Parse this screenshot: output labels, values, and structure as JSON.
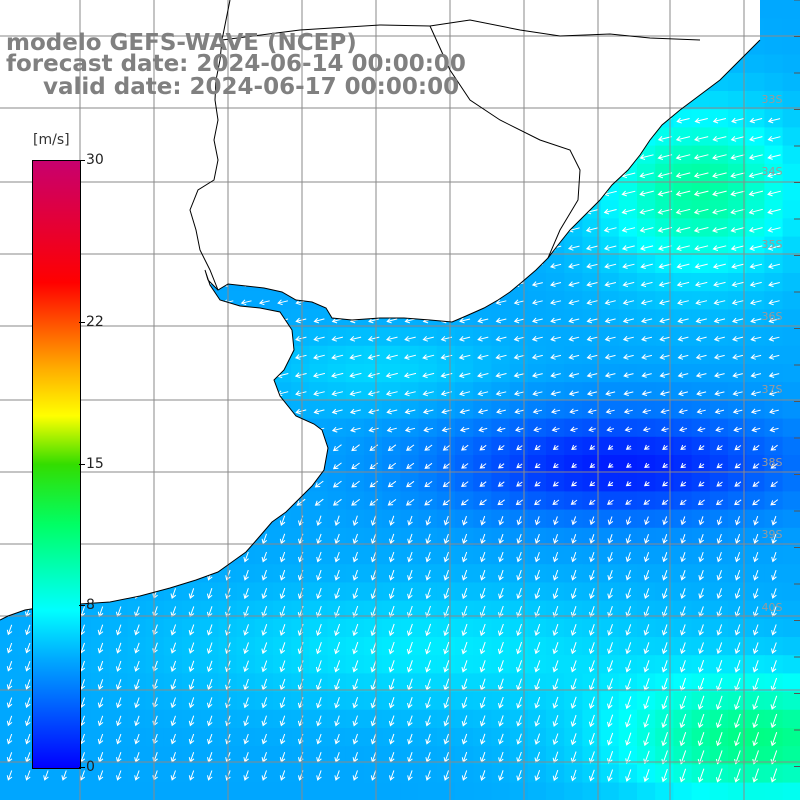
{
  "title": {
    "model": "modelo GEFS-WAVE (NCEP)",
    "forecast": "forecast date: 2024-06-14 00:00:00",
    "valid": "valid date: 2024-06-17 00:00:00"
  },
  "colorbar": {
    "unit": "[m/s]",
    "ticks": [
      {
        "label": "30",
        "value": 30
      },
      {
        "label": "22",
        "value": 22
      },
      {
        "label": "15",
        "value": 15
      },
      {
        "label": "8",
        "value": 8
      },
      {
        "label": "0",
        "value": 0
      }
    ]
  },
  "lat_labels": [
    "33S",
    "34S",
    "35S",
    "36S",
    "37S",
    "38S",
    "39S",
    "40S"
  ],
  "colors": {
    "land": "#ffffff",
    "coast": "#000000",
    "grid": "#888888",
    "arrow": "#ffffff",
    "speed_low": "#0000ff",
    "speed_mid": "#00aaff",
    "speed_8": "#00ffff",
    "speed_high": "#00ff66"
  }
}
